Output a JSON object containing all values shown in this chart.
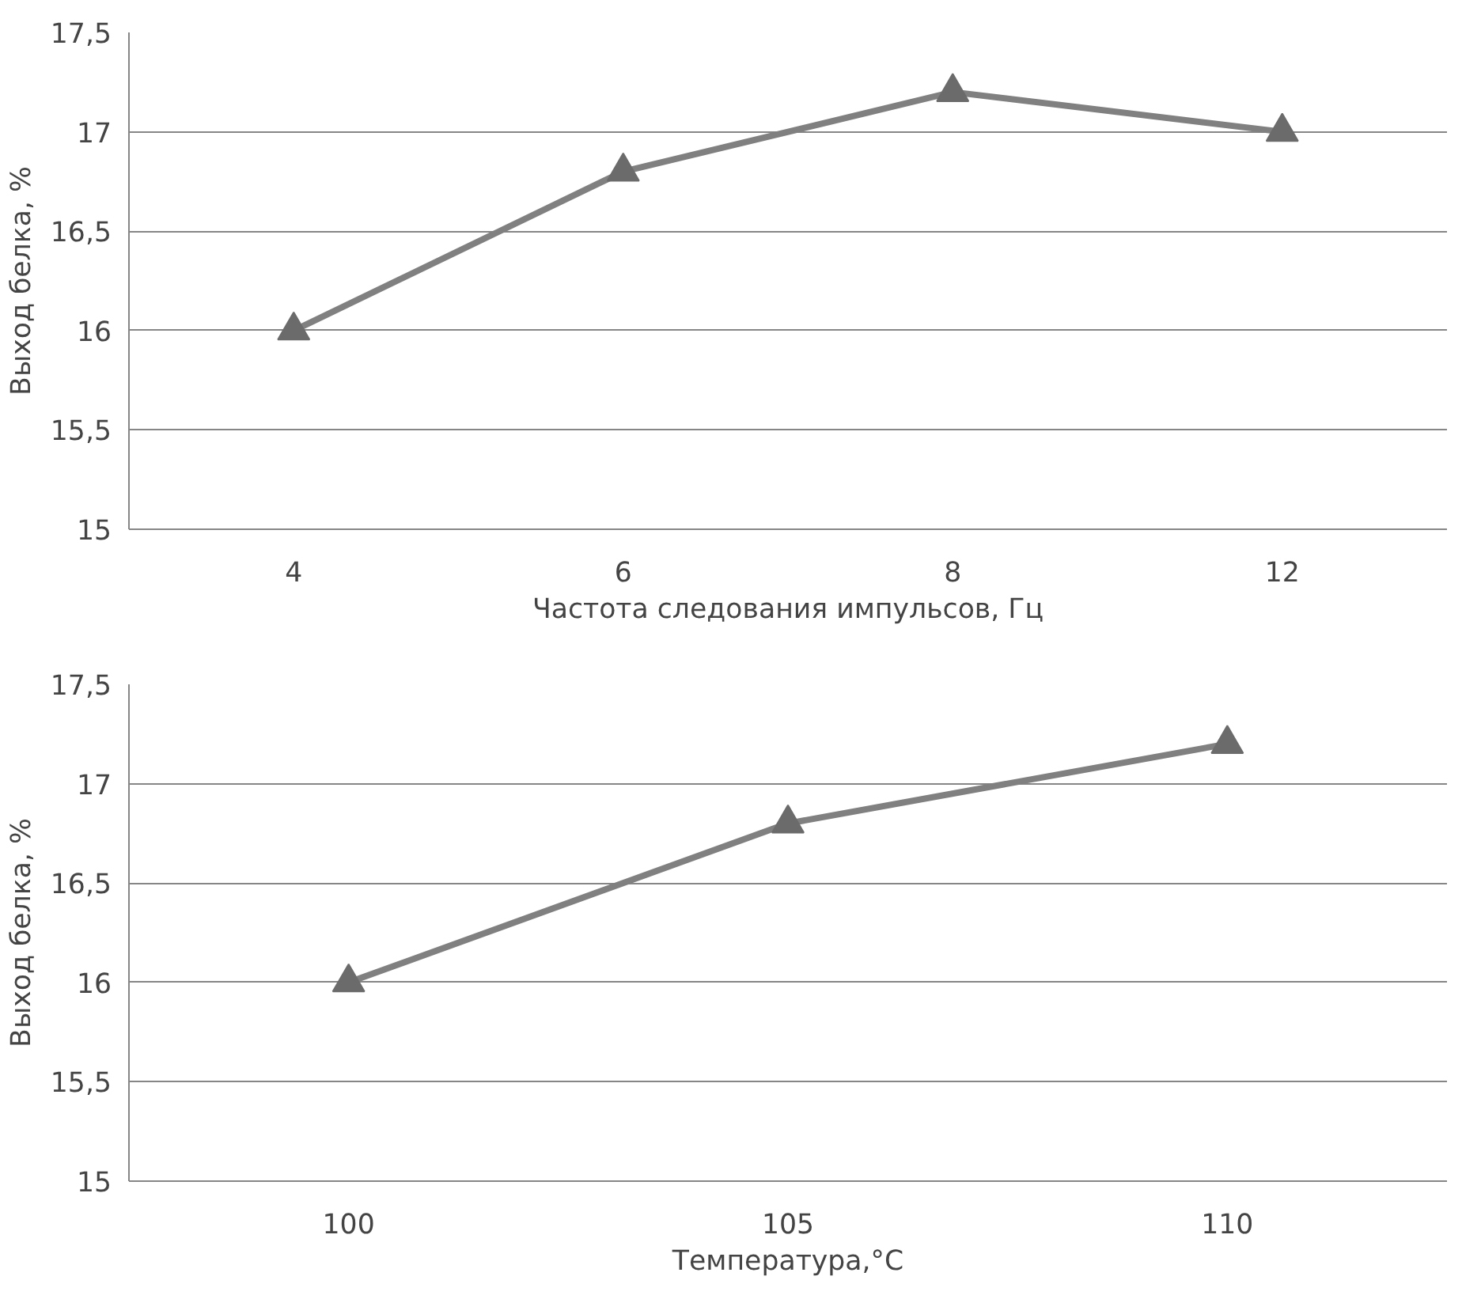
{
  "chart_data": [
    {
      "type": "line",
      "xlabel": "Частота следования импульсов, Гц",
      "ylabel": "Выход белка, %",
      "categories": [
        "4",
        "6",
        "8",
        "12"
      ],
      "series": [
        {
          "color": "#808080",
          "values": [
            16,
            16.8,
            17.2,
            17.0
          ]
        }
      ],
      "ylim": [
        15,
        17.5
      ],
      "yticks": [
        15,
        {
          "value": 15.5,
          "label": "15,5"
        },
        16,
        {
          "value": 16.5,
          "label": "16,5"
        },
        17,
        {
          "value": 17.5,
          "label": "17,5"
        }
      ],
      "grid": "y",
      "marker": "triangle",
      "line_style": "solid"
    },
    {
      "type": "line",
      "xlabel": "Температура,°C",
      "ylabel": "Выход белка, %",
      "categories": [
        "100",
        "105",
        "110"
      ],
      "series": [
        {
          "color": "#808080",
          "values": [
            16,
            16.8,
            17.2
          ]
        }
      ],
      "ylim": [
        15,
        17.5
      ],
      "yticks": [
        15,
        {
          "value": 15.5,
          "label": "15,5"
        },
        16,
        {
          "value": 16.5,
          "label": "16,5"
        },
        17,
        {
          "value": 17.5,
          "label": "17,5"
        }
      ],
      "grid": "y",
      "marker": "triangle",
      "line_style": "solid"
    }
  ]
}
